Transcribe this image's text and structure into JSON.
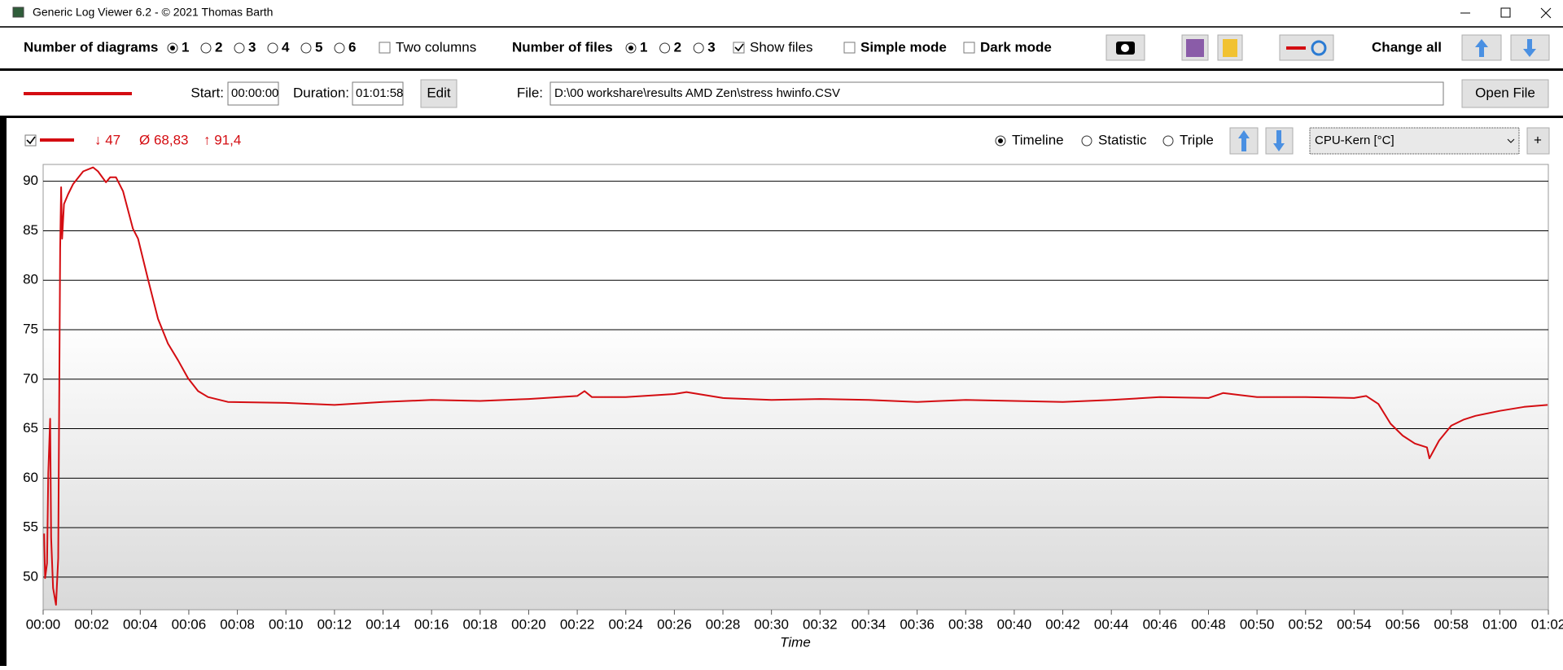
{
  "window": {
    "title": "Generic Log Viewer 6.2 - © 2021 Thomas Barth"
  },
  "toolbar": {
    "diagrams_label": "Number of diagrams",
    "diagram_options": [
      "1",
      "2",
      "3",
      "4",
      "5",
      "6"
    ],
    "two_columns": "Two columns",
    "files_label": "Number of files",
    "file_options": [
      "1",
      "2",
      "3"
    ],
    "show_files": "Show files",
    "simple_mode": "Simple mode",
    "dark_mode": "Dark mode",
    "change_all": "Change all"
  },
  "file_row": {
    "start_label": "Start:",
    "start": "00:00:00",
    "duration_label": "Duration:",
    "duration": "01:01:58",
    "edit": "Edit",
    "file_label": "File:",
    "file_path": "D:\\00 workshare\\results AMD Zen\\stress hwinfo.CSV",
    "open_file": "Open File"
  },
  "diagram_header": {
    "min": "↓ 47",
    "avg": "Ø 68,83",
    "max": "↑ 91,4",
    "views": [
      "Timeline",
      "Statistic",
      "Triple"
    ],
    "sensor": "CPU-Kern [°C]",
    "add": "+"
  },
  "chart_data": {
    "type": "line",
    "x_label": "Time",
    "color": "#d40d12",
    "x": [
      0.04,
      0.08,
      0.16,
      0.21,
      0.29,
      0.33,
      0.41,
      0.53,
      0.62,
      0.7,
      0.74,
      0.78,
      0.86,
      1.03,
      1.23,
      1.65,
      2.06,
      2.26,
      2.59,
      2.76,
      3.0,
      3.29,
      3.7,
      3.91,
      4.32,
      4.73,
      5.14,
      5.56,
      5.97,
      6.38,
      6.79,
      7.61,
      10,
      12,
      14,
      16,
      18,
      20,
      22,
      22.3,
      22.6,
      24,
      26,
      26.5,
      28,
      30,
      32,
      34,
      36,
      38,
      40,
      42,
      44,
      46,
      48,
      48.6,
      50,
      52,
      54,
      54.5,
      55,
      55.5,
      56,
      56.5,
      57,
      57.1,
      57.5,
      58,
      58.5,
      59,
      60,
      61,
      61.97
    ],
    "values": [
      54.4,
      49.9,
      51.4,
      60.5,
      66.0,
      54.0,
      48.9,
      47.2,
      51.9,
      83.2,
      89.4,
      84.2,
      87.7,
      88.7,
      89.7,
      91.0,
      91.4,
      91.0,
      89.9,
      90.4,
      90.4,
      89.0,
      85.2,
      84.2,
      80.1,
      76.1,
      73.6,
      71.9,
      70.1,
      68.8,
      68.2,
      67.7,
      67.6,
      67.4,
      67.7,
      67.9,
      67.8,
      68.0,
      68.3,
      68.8,
      68.2,
      68.2,
      68.5,
      68.7,
      68.1,
      67.9,
      68.0,
      67.9,
      67.7,
      67.9,
      67.8,
      67.7,
      67.9,
      68.2,
      68.1,
      68.6,
      68.2,
      68.2,
      68.1,
      68.3,
      67.5,
      65.5,
      64.3,
      63.5,
      63.1,
      62.0,
      63.8,
      65.3,
      65.9,
      66.3,
      66.8,
      67.2,
      67.4
    ],
    "xlim": [
      0,
      62
    ],
    "ylim": [
      46.7,
      91.7
    ],
    "yticks": [
      50,
      55,
      60,
      65,
      70,
      75,
      80,
      85,
      90
    ],
    "xticks": [
      {
        "value": 0,
        "label": "00:00"
      },
      {
        "value": 2,
        "label": "00:02"
      },
      {
        "value": 4,
        "label": "00:04"
      },
      {
        "value": 6,
        "label": "00:06"
      },
      {
        "value": 8,
        "label": "00:08"
      },
      {
        "value": 10,
        "label": "00:10"
      },
      {
        "value": 12,
        "label": "00:12"
      },
      {
        "value": 14,
        "label": "00:14"
      },
      {
        "value": 16,
        "label": "00:16"
      },
      {
        "value": 18,
        "label": "00:18"
      },
      {
        "value": 20,
        "label": "00:20"
      },
      {
        "value": 22,
        "label": "00:22"
      },
      {
        "value": 24,
        "label": "00:24"
      },
      {
        "value": 26,
        "label": "00:26"
      },
      {
        "value": 28,
        "label": "00:28"
      },
      {
        "value": 30,
        "label": "00:30"
      },
      {
        "value": 32,
        "label": "00:32"
      },
      {
        "value": 34,
        "label": "00:34"
      },
      {
        "value": 36,
        "label": "00:36"
      },
      {
        "value": 38,
        "label": "00:38"
      },
      {
        "value": 40,
        "label": "00:40"
      },
      {
        "value": 42,
        "label": "00:42"
      },
      {
        "value": 44,
        "label": "00:44"
      },
      {
        "value": 46,
        "label": "00:46"
      },
      {
        "value": 48,
        "label": "00:48"
      },
      {
        "value": 50,
        "label": "00:50"
      },
      {
        "value": 52,
        "label": "00:52"
      },
      {
        "value": 54,
        "label": "00:54"
      },
      {
        "value": 56,
        "label": "00:56"
      },
      {
        "value": 58,
        "label": "00:58"
      },
      {
        "value": 60,
        "label": "01:00"
      },
      {
        "value": 62,
        "label": "01:02"
      }
    ],
    "grid": true
  }
}
